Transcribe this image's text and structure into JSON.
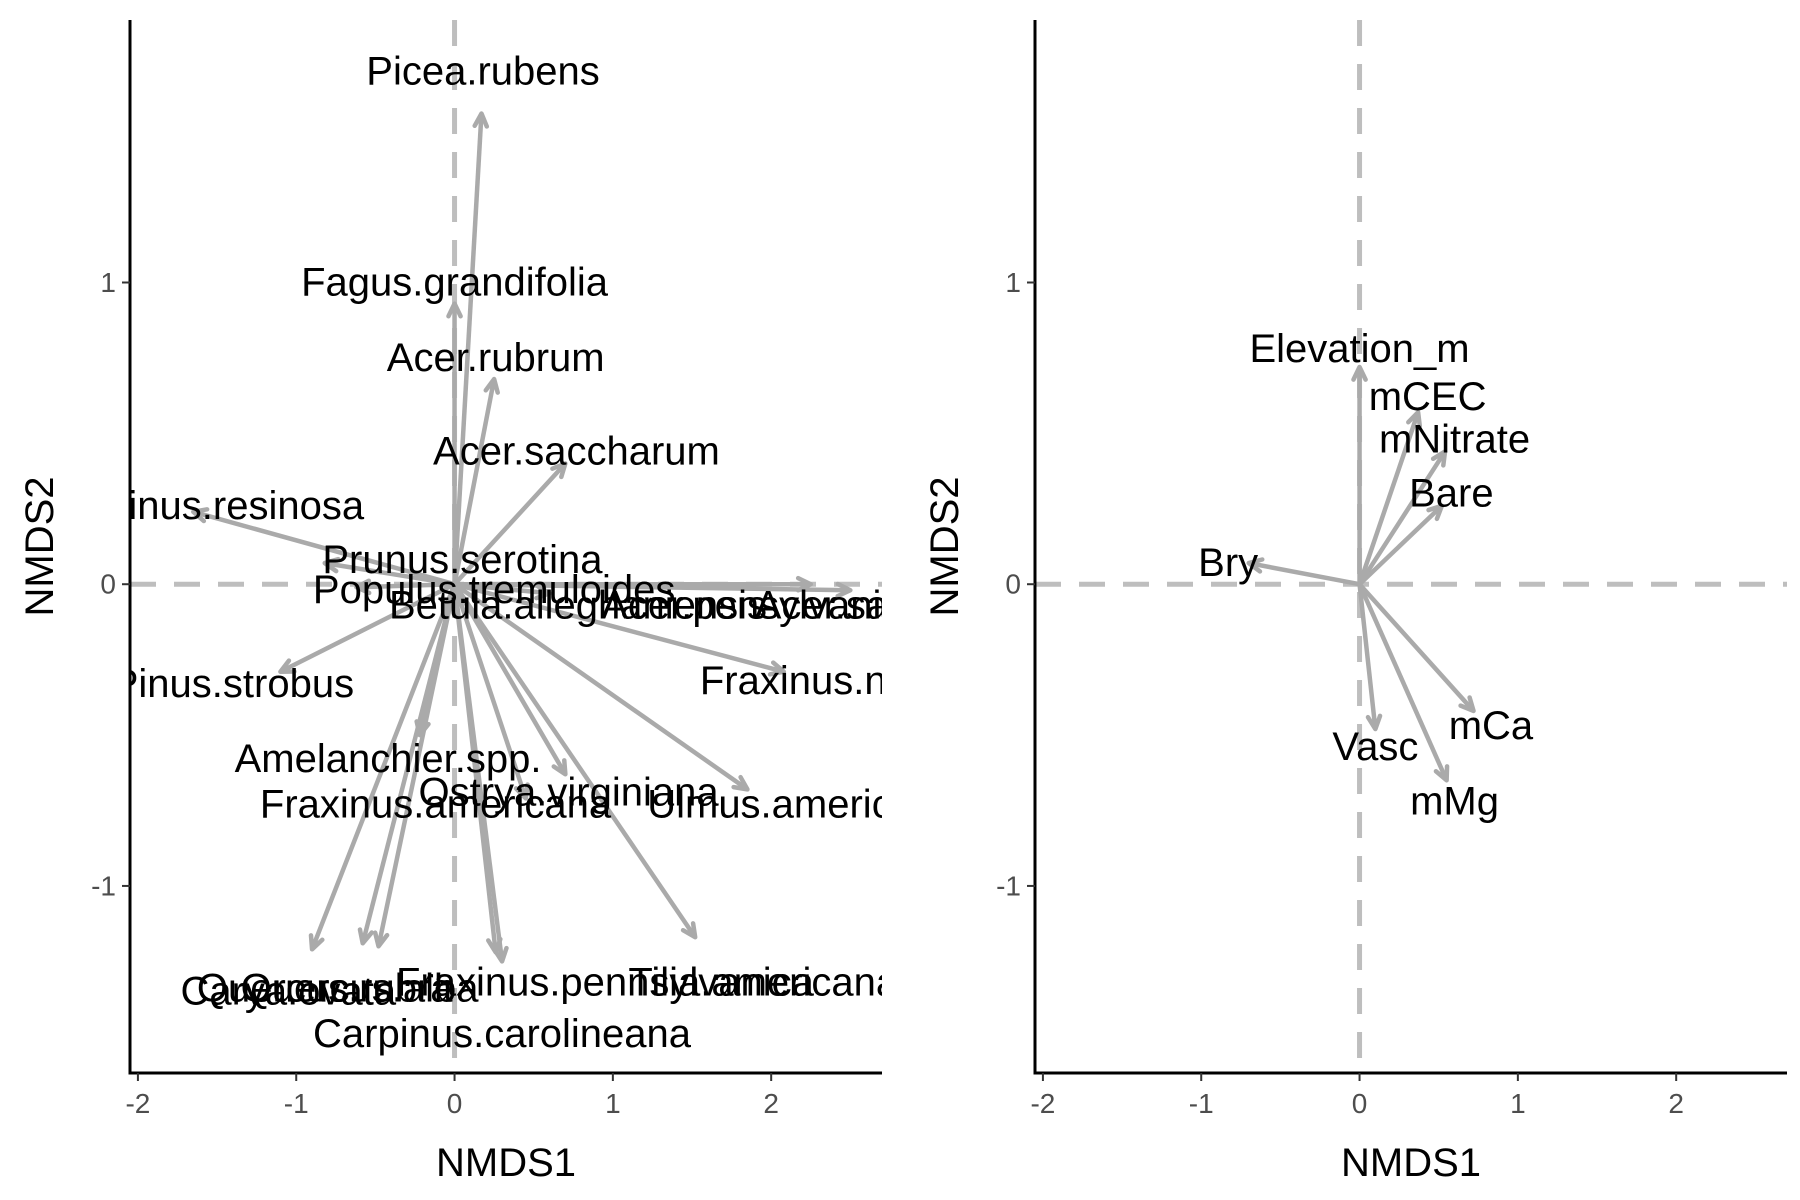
{
  "chart_data": [
    {
      "type": "scatter",
      "panel": "species",
      "xlabel": "NMDS1",
      "ylabel": "NMDS2",
      "xlim": [
        -2.05,
        2.7
      ],
      "ylim": [
        -1.62,
        1.87
      ],
      "xticks": [
        -2,
        -1,
        0,
        1,
        2
      ],
      "yticks": [
        -1,
        0,
        1
      ],
      "xtick_labels": [
        "-2",
        "-1",
        "0",
        "1",
        "2"
      ],
      "ytick_labels": [
        "-1",
        "0",
        "1"
      ],
      "grid": false,
      "reference_lines": {
        "x": 0,
        "y": 0
      },
      "vectors": [
        {
          "name": "Picea.rubens",
          "x": 0.17,
          "y": 1.56,
          "label_x": 0.18,
          "label_y": 1.7
        },
        {
          "name": "Fagus.grandifolia",
          "x": 0.0,
          "y": 0.93,
          "label_x": 0.0,
          "label_y": 1.0
        },
        {
          "name": "Acer.rubrum",
          "x": 0.25,
          "y": 0.68,
          "label_x": 0.26,
          "label_y": 0.75
        },
        {
          "name": "Acer.saccharum",
          "x": 0.7,
          "y": 0.4,
          "label_x": 0.77,
          "label_y": 0.44
        },
        {
          "name": "Pinus.resinosa",
          "x": -1.65,
          "y": 0.24,
          "label_x": -1.4,
          "label_y": 0.26
        },
        {
          "name": "Prunus.serotina",
          "x": -0.82,
          "y": 0.07,
          "label_x": 0.05,
          "label_y": 0.08
        },
        {
          "name": "Populus.tremuloides",
          "x": -0.62,
          "y": -0.01,
          "label_x": 0.25,
          "label_y": -0.02
        },
        {
          "name": "Betula.alleghaniensis",
          "x": 0.6,
          "y": -0.03,
          "label_x": 0.78,
          "label_y": -0.07
        },
        {
          "name": "Acer.pensylvanicum",
          "x": 2.25,
          "y": 0.0,
          "label_x": 2.05,
          "label_y": -0.07
        },
        {
          "name": "Acer.saccharinum",
          "x": 2.5,
          "y": -0.02,
          "label_x": 2.9,
          "label_y": -0.07
        },
        {
          "name": "Fraxinus.nigra",
          "x": 2.08,
          "y": -0.29,
          "label_x": 2.35,
          "label_y": -0.32
        },
        {
          "name": "Pinus.strobus",
          "x": -1.1,
          "y": -0.29,
          "label_x": -1.4,
          "label_y": -0.33
        },
        {
          "name": "Amelanchier.spp.",
          "x": -0.22,
          "y": -0.5,
          "label_x": -0.42,
          "label_y": -0.58
        },
        {
          "name": "Ostrya.virginiana",
          "x": 0.7,
          "y": -0.63,
          "label_x": 0.72,
          "label_y": -0.69
        },
        {
          "name": "Ulmus.americana",
          "x": 1.85,
          "y": -0.68,
          "label_x": 2.2,
          "label_y": -0.73
        },
        {
          "name": "Fraxinus.americana",
          "x": 0.45,
          "y": -0.71,
          "label_x": -0.12,
          "label_y": -0.73
        },
        {
          "name": "Quercus.rubra",
          "x": -0.9,
          "y": -1.21,
          "label_x": -0.82,
          "label_y": -1.34
        },
        {
          "name": "Carya.ovata",
          "x": -0.58,
          "y": -1.19,
          "label_x": -1.05,
          "label_y": -1.35
        },
        {
          "name": "Quercus.alba",
          "x": -0.48,
          "y": -1.2,
          "label_x": -0.6,
          "label_y": -1.34
        },
        {
          "name": "Fraxinus.pennsylvanica",
          "x": 0.26,
          "y": -1.22,
          "label_x": 0.95,
          "label_y": -1.32
        },
        {
          "name": "Tilia.americana",
          "x": 1.52,
          "y": -1.17,
          "label_x": 1.95,
          "label_y": -1.32
        },
        {
          "name": "Carpinus.carolineana",
          "x": 0.3,
          "y": -1.25,
          "label_x": 0.3,
          "label_y": -1.49
        }
      ]
    },
    {
      "type": "scatter",
      "panel": "environment",
      "xlabel": "NMDS1",
      "ylabel": "NMDS2",
      "xlim": [
        -2.05,
        2.7
      ],
      "ylim": [
        -1.62,
        1.87
      ],
      "xticks": [
        -2,
        -1,
        0,
        1,
        2
      ],
      "yticks": [
        -1,
        0,
        1
      ],
      "xtick_labels": [
        "-2",
        "-1",
        "0",
        "1",
        "2"
      ],
      "ytick_labels": [
        "-1",
        "0",
        "1"
      ],
      "grid": false,
      "reference_lines": {
        "x": 0,
        "y": 0
      },
      "vectors": [
        {
          "name": "Elevation_m",
          "x": 0.0,
          "y": 0.72,
          "label_x": 0.0,
          "label_y": 0.78
        },
        {
          "name": "mCEC",
          "x": 0.37,
          "y": 0.57,
          "label_x": 0.43,
          "label_y": 0.62
        },
        {
          "name": "mNitrate",
          "x": 0.54,
          "y": 0.44,
          "label_x": 0.6,
          "label_y": 0.48
        },
        {
          "name": "Bare",
          "x": 0.52,
          "y": 0.26,
          "label_x": 0.58,
          "label_y": 0.3
        },
        {
          "name": "Bry",
          "x": -0.7,
          "y": 0.07,
          "label_x": -0.83,
          "label_y": 0.07
        },
        {
          "name": "Vasc",
          "x": 0.1,
          "y": -0.48,
          "label_x": 0.1,
          "label_y": -0.54
        },
        {
          "name": "mCa",
          "x": 0.72,
          "y": -0.42,
          "label_x": 0.83,
          "label_y": -0.47
        },
        {
          "name": "mMg",
          "x": 0.55,
          "y": -0.65,
          "label_x": 0.6,
          "label_y": -0.72
        }
      ]
    }
  ]
}
